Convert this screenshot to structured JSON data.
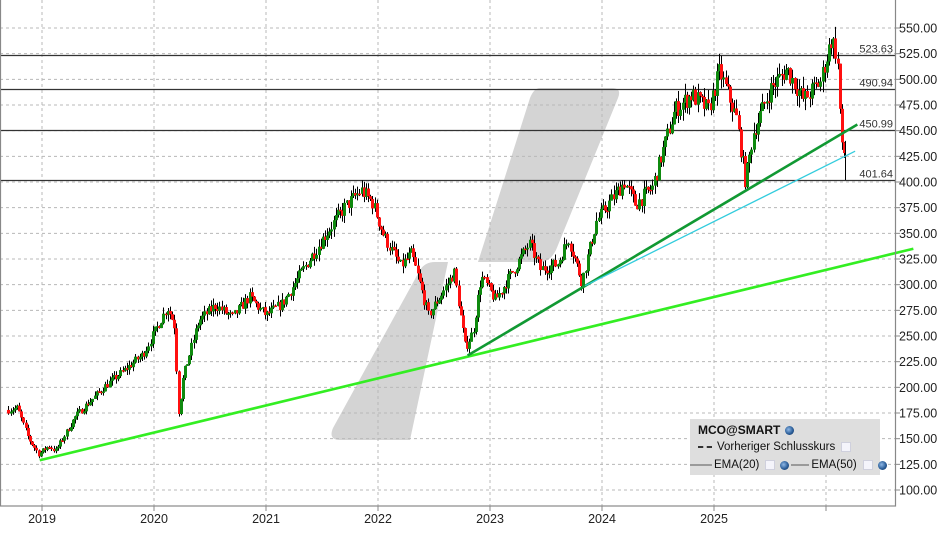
{
  "chart_data": {
    "type": "candlestick",
    "symbol": "MCO@SMART",
    "title": "",
    "xlabel": "",
    "ylabel": "",
    "x_tick_labels": [
      "2019",
      "2020",
      "2021",
      "2022",
      "2023",
      "2024",
      "2025"
    ],
    "y_tick_labels": [
      "550.00",
      "525.00",
      "500.00",
      "475.00",
      "450.00",
      "425.00",
      "400.00",
      "375.00",
      "350.00",
      "325.00",
      "300.00",
      "275.00",
      "250.00",
      "225.00",
      "200.00",
      "175.00",
      "150.00",
      "125.00",
      "100.00"
    ],
    "ylim": [
      90,
      578
    ],
    "xlim": [
      "2018-09",
      "2026-03"
    ],
    "grid": true,
    "y_axis_position": "right",
    "horizontal_levels": [
      523.63,
      490.94,
      450.99,
      401.64
    ],
    "price_anchors": [
      {
        "date": 2018.7,
        "price": 178
      },
      {
        "date": 2018.78,
        "price": 180
      },
      {
        "date": 2018.88,
        "price": 150
      },
      {
        "date": 2018.97,
        "price": 135
      },
      {
        "date": 2019.06,
        "price": 143
      },
      {
        "date": 2019.12,
        "price": 138
      },
      {
        "date": 2019.3,
        "price": 172
      },
      {
        "date": 2019.55,
        "price": 200
      },
      {
        "date": 2019.75,
        "price": 218
      },
      {
        "date": 2019.9,
        "price": 232
      },
      {
        "date": 2020.12,
        "price": 278
      },
      {
        "date": 2020.18,
        "price": 262
      },
      {
        "date": 2020.22,
        "price": 175
      },
      {
        "date": 2020.26,
        "price": 210
      },
      {
        "date": 2020.4,
        "price": 265
      },
      {
        "date": 2020.55,
        "price": 280
      },
      {
        "date": 2020.7,
        "price": 268
      },
      {
        "date": 2020.85,
        "price": 288
      },
      {
        "date": 2021.0,
        "price": 270
      },
      {
        "date": 2021.15,
        "price": 282
      },
      {
        "date": 2021.35,
        "price": 318
      },
      {
        "date": 2021.55,
        "price": 352
      },
      {
        "date": 2021.7,
        "price": 375
      },
      {
        "date": 2021.85,
        "price": 392
      },
      {
        "date": 2021.95,
        "price": 380
      },
      {
        "date": 2022.05,
        "price": 348
      },
      {
        "date": 2022.2,
        "price": 318
      },
      {
        "date": 2022.3,
        "price": 330
      },
      {
        "date": 2022.45,
        "price": 270
      },
      {
        "date": 2022.55,
        "price": 288
      },
      {
        "date": 2022.68,
        "price": 312
      },
      {
        "date": 2022.78,
        "price": 238
      },
      {
        "date": 2022.85,
        "price": 255
      },
      {
        "date": 2022.92,
        "price": 308
      },
      {
        "date": 2023.05,
        "price": 285
      },
      {
        "date": 2023.25,
        "price": 322
      },
      {
        "date": 2023.35,
        "price": 340
      },
      {
        "date": 2023.45,
        "price": 315
      },
      {
        "date": 2023.6,
        "price": 320
      },
      {
        "date": 2023.7,
        "price": 345
      },
      {
        "date": 2023.82,
        "price": 303
      },
      {
        "date": 2023.95,
        "price": 362
      },
      {
        "date": 2024.1,
        "price": 385
      },
      {
        "date": 2024.2,
        "price": 400
      },
      {
        "date": 2024.3,
        "price": 378
      },
      {
        "date": 2024.45,
        "price": 395
      },
      {
        "date": 2024.65,
        "price": 470
      },
      {
        "date": 2024.8,
        "price": 485
      },
      {
        "date": 2024.95,
        "price": 470
      },
      {
        "date": 2025.05,
        "price": 508
      },
      {
        "date": 2025.2,
        "price": 462
      },
      {
        "date": 2025.28,
        "price": 400
      },
      {
        "date": 2025.35,
        "price": 448
      },
      {
        "date": 2025.5,
        "price": 490
      },
      {
        "date": 2025.65,
        "price": 510
      },
      {
        "date": 2025.8,
        "price": 480
      },
      {
        "date": 2025.95,
        "price": 498
      },
      {
        "date": 2026.05,
        "price": 540
      },
      {
        "date": 2026.1,
        "price": 522
      },
      {
        "date": 2026.14,
        "price": 432
      },
      {
        "date": 2026.18,
        "price": 425
      }
    ],
    "trendlines": [
      {
        "name": "long-term-support",
        "color": "#33ee22",
        "from": {
          "date": 2018.98,
          "price": 129
        },
        "to": {
          "date": 2026.78,
          "price": 335
        }
      },
      {
        "name": "medium-support",
        "color": "#119933",
        "from": {
          "date": 2022.8,
          "price": 231
        },
        "to": {
          "date": 2026.28,
          "price": 456
        }
      },
      {
        "name": "short-support",
        "color": "#33ccdd",
        "from": {
          "date": 2023.85,
          "price": 299
        },
        "to": {
          "date": 2026.26,
          "price": 430
        }
      }
    ],
    "up_color": "#0f8a0f",
    "down_color": "#ff1010"
  },
  "legend": {
    "title": "MCO@SMART",
    "previous_close_label": "Vorheriger Schlusskurs",
    "ema20_label": "EMA(20)",
    "ema50_label": "EMA(50)"
  },
  "watermark": {
    "shape": "slash-logo",
    "color": "#d4d4d4"
  }
}
